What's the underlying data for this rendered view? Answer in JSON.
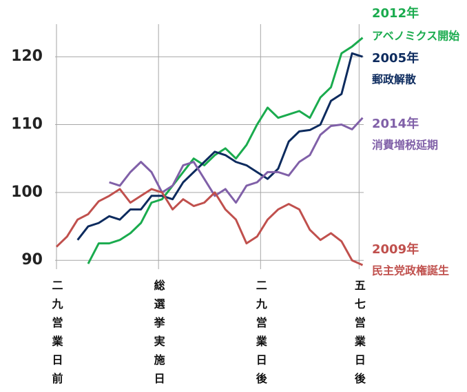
{
  "chart_data": {
    "type": "line",
    "x": [
      -29,
      -26,
      -23,
      -20,
      -17,
      -14,
      -11,
      -8,
      -5,
      -2,
      1,
      4,
      7,
      10,
      13,
      16,
      19,
      22,
      25,
      28,
      31,
      34,
      37,
      40,
      43,
      46,
      49,
      52,
      55,
      58
    ],
    "xlim": [
      -29,
      58.3
    ],
    "xticks": [
      {
        "value": -29,
        "label": "二九営業日前"
      },
      {
        "value": 0,
        "label": "総選挙実施日"
      },
      {
        "value": 29,
        "label": "二九営業日後"
      },
      {
        "value": 57,
        "label": "五七営業日後"
      }
    ],
    "ylim": [
      88.7,
      124.8
    ],
    "yticks": [
      90,
      100,
      110,
      120
    ],
    "grid": true,
    "series": [
      {
        "name": "2012年",
        "label": "アベノミクス開始",
        "color": "#1aab4e",
        "values": [
          null,
          null,
          null,
          89.5,
          92.5,
          92.5,
          93,
          94,
          95.5,
          98.5,
          99,
          101,
          103,
          105,
          104,
          105.5,
          106.5,
          105,
          107,
          110,
          112.5,
          111,
          111.5,
          112,
          111,
          114,
          115.5,
          120.5,
          121.5,
          122.8
        ]
      },
      {
        "name": "2005年",
        "label": "郵政解散",
        "color": "#0d2b5e",
        "values": [
          null,
          null,
          93,
          95,
          95.5,
          96.5,
          96,
          97.5,
          97.5,
          99.5,
          99.5,
          99,
          101.5,
          103,
          104.5,
          106,
          105.5,
          104.5,
          104,
          103,
          102,
          103.5,
          107.5,
          109,
          109.2,
          110,
          113.5,
          114.5,
          120.5,
          120
        ]
      },
      {
        "name": "2014年",
        "label": "消費増税延期",
        "color": "#8060a8",
        "values": [
          null,
          null,
          null,
          null,
          null,
          101.5,
          101,
          103,
          104.5,
          103,
          100,
          101,
          104,
          104.5,
          102,
          99.5,
          100.5,
          98.5,
          101,
          101.5,
          103,
          103,
          102.5,
          104.5,
          105.5,
          108.5,
          109.8,
          110,
          109.3,
          111
        ]
      },
      {
        "name": "2009年",
        "label": "民主党政権誕生",
        "color": "#c0504d",
        "values": [
          92,
          93.5,
          96,
          96.8,
          98.7,
          99.5,
          100.5,
          98.5,
          99.5,
          100.5,
          100,
          97.5,
          99,
          98,
          98.5,
          100,
          97.5,
          96,
          92.5,
          93.5,
          96,
          97.5,
          98.3,
          97.5,
          94.5,
          93,
          94,
          92.8,
          90,
          89.3
        ]
      }
    ]
  }
}
